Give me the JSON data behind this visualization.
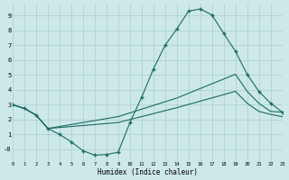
{
  "xlabel": "Humidex (Indice chaleur)",
  "bg_color": "#cce8e8",
  "grid_color": "#aacece",
  "line_color": "#1a6b60",
  "xlim": [
    0,
    23
  ],
  "ylim": [
    -0.8,
    9.8
  ],
  "xtick_vals": [
    0,
    1,
    2,
    3,
    4,
    5,
    6,
    7,
    8,
    9,
    10,
    11,
    12,
    13,
    14,
    15,
    16,
    17,
    18,
    19,
    20,
    21,
    22,
    23
  ],
  "ytick_vals": [
    0,
    1,
    2,
    3,
    4,
    5,
    6,
    7,
    8,
    9
  ],
  "curve1_x": [
    0,
    1,
    2,
    3,
    4,
    5,
    6,
    7,
    8,
    9,
    10,
    11,
    12,
    13,
    14,
    15,
    16,
    17,
    18,
    19,
    20,
    21,
    22,
    23
  ],
  "curve1_y": [
    3.0,
    2.75,
    2.3,
    1.4,
    1.0,
    0.5,
    -0.1,
    -0.4,
    -0.35,
    -0.2,
    1.8,
    3.5,
    5.4,
    7.0,
    8.1,
    9.3,
    9.45,
    9.05,
    7.8,
    6.6,
    5.05,
    3.9,
    3.1,
    2.5
  ],
  "curve2_x": [
    0,
    1,
    2,
    3,
    9,
    14,
    19,
    20,
    21,
    22,
    23
  ],
  "curve2_y": [
    3.0,
    2.75,
    2.3,
    1.4,
    2.2,
    3.45,
    5.05,
    3.9,
    3.1,
    2.55,
    2.5
  ],
  "curve3_x": [
    0,
    1,
    2,
    3,
    9,
    14,
    19,
    20,
    21,
    22,
    23
  ],
  "curve3_y": [
    3.0,
    2.75,
    2.3,
    1.4,
    1.8,
    2.8,
    3.9,
    3.1,
    2.55,
    2.35,
    2.2
  ]
}
